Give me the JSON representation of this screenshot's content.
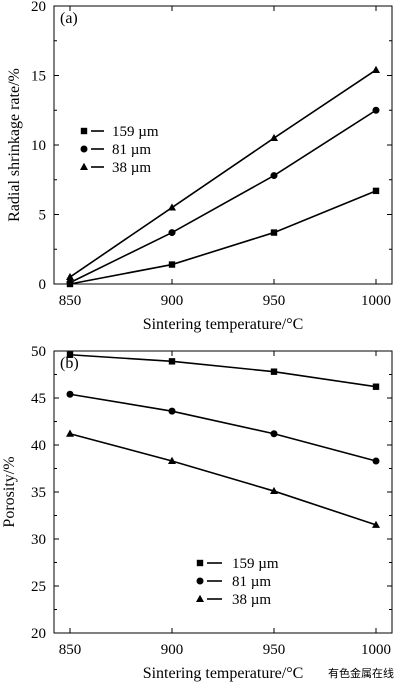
{
  "chart_data": [
    {
      "type": "line",
      "panel_label": "(a)",
      "x": [
        850,
        900,
        950,
        1000
      ],
      "xlabel": "Sintering temperature/°C",
      "ylabel": "Radial shrinkage rate/%",
      "xlim": [
        850,
        1000
      ],
      "ylim": [
        0,
        20
      ],
      "x_ticks": [
        "850",
        "900",
        "950",
        "1000"
      ],
      "y_ticks": [
        "0",
        "5",
        "10",
        "15",
        "20"
      ],
      "legend_position": "middle-left",
      "series": [
        {
          "name": "159 µm",
          "marker": "square",
          "values": [
            0,
            1.4,
            3.7,
            6.7
          ]
        },
        {
          "name": "81 µm",
          "marker": "circle",
          "values": [
            0.1,
            3.7,
            7.8,
            12.5
          ]
        },
        {
          "name": "38 µm",
          "marker": "triangle",
          "values": [
            0.5,
            5.5,
            10.5,
            15.4
          ]
        }
      ]
    },
    {
      "type": "line",
      "panel_label": "(b)",
      "x": [
        850,
        900,
        950,
        1000
      ],
      "xlabel": "Sintering temperature/°C",
      "ylabel": "Porosity/%",
      "xlim": [
        850,
        1000
      ],
      "ylim": [
        20,
        50
      ],
      "x_ticks": [
        "850",
        "900",
        "950",
        "1000"
      ],
      "y_ticks": [
        "20",
        "25",
        "30",
        "35",
        "40",
        "45",
        "50"
      ],
      "legend_position": "bottom-center",
      "series": [
        {
          "name": "159 µm",
          "marker": "square",
          "values": [
            49.6,
            48.9,
            47.8,
            46.2
          ]
        },
        {
          "name": "81 µm",
          "marker": "circle",
          "values": [
            45.4,
            43.6,
            41.2,
            38.3
          ]
        },
        {
          "name": "38 µm",
          "marker": "triangle",
          "values": [
            41.2,
            38.3,
            35.1,
            31.5
          ]
        }
      ]
    }
  ],
  "watermark": "有色金属在线"
}
